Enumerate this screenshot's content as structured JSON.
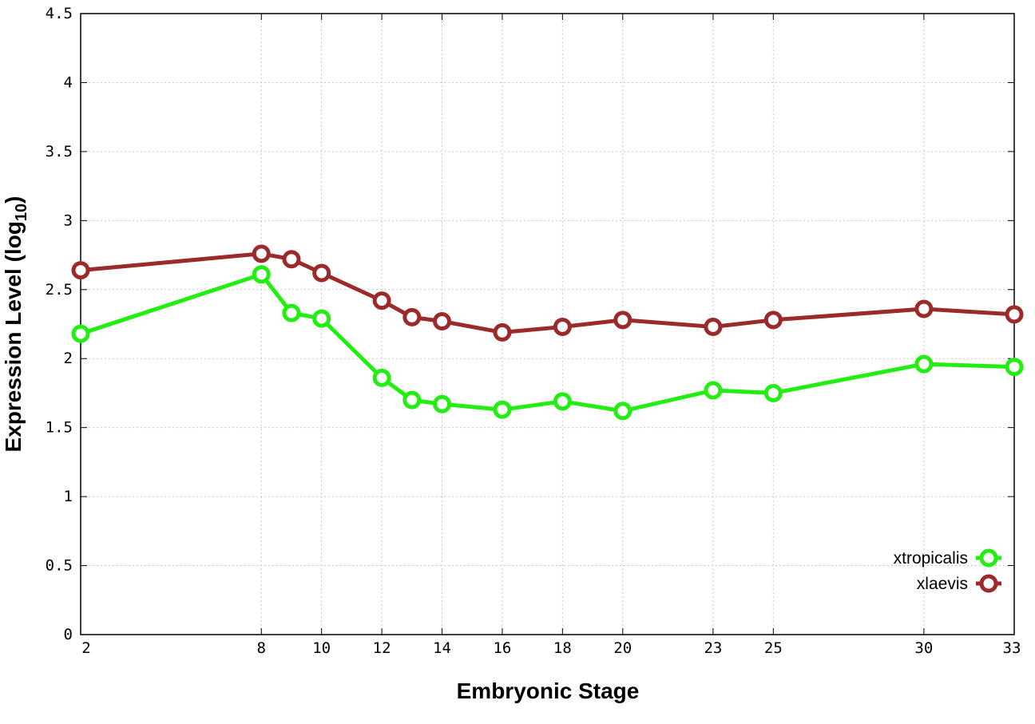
{
  "chart_data": {
    "type": "line",
    "xlabel": "Embryonic Stage",
    "ylabel": "Expression Level (log",
    "ylabel_subscript": "10",
    "ylabel_close": ")",
    "ylim": [
      0,
      4.5
    ],
    "xlim": [
      2,
      33
    ],
    "yticks": [
      "0",
      "0.5",
      "1",
      "1.5",
      "2",
      "2.5",
      "3",
      "3.5",
      "4",
      "4.5"
    ],
    "ytick_values": [
      0,
      0.5,
      1,
      1.5,
      2,
      2.5,
      3,
      3.5,
      4,
      4.5
    ],
    "x": [
      2,
      8,
      9,
      10,
      12,
      13,
      14,
      16,
      18,
      20,
      23,
      25,
      30,
      33
    ],
    "xtick_labels": [
      "2",
      "8",
      "10",
      "12",
      "14",
      "16",
      "18",
      "20",
      "23",
      "25",
      "30",
      "33"
    ],
    "xtick_values": [
      2,
      8,
      10,
      12,
      14,
      16,
      18,
      20,
      23,
      25,
      30,
      33
    ],
    "grid": true,
    "legend_position": "bottom-right",
    "series": [
      {
        "name": "xtropicalis",
        "color": "#22ee11",
        "values": [
          2.18,
          2.61,
          2.33,
          2.29,
          1.86,
          1.7,
          1.67,
          1.63,
          1.69,
          1.62,
          1.77,
          1.75,
          1.96,
          1.94
        ]
      },
      {
        "name": "xlaevis",
        "color": "#9b2a2a",
        "values": [
          2.64,
          2.76,
          2.72,
          2.62,
          2.42,
          2.3,
          2.27,
          2.19,
          2.23,
          2.28,
          2.23,
          2.28,
          2.36,
          2.32
        ]
      }
    ]
  }
}
